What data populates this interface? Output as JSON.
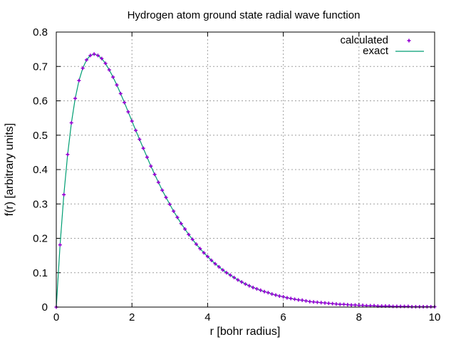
{
  "chart_data": {
    "type": "line",
    "title": "Hydrogen atom ground state radial wave function",
    "xlabel": "r [bohr radius]",
    "ylabel": "f(r) [arbitrary units]",
    "xlim": [
      0,
      10
    ],
    "ylim": [
      0,
      0.8
    ],
    "x_ticks": [
      "0",
      "2",
      "4",
      "6",
      "8",
      "10"
    ],
    "y_ticks": [
      "0",
      "0.1",
      "0.2",
      "0.3",
      "0.4",
      "0.5",
      "0.6",
      "0.7",
      "0.8"
    ],
    "grid": true,
    "legend_position": "top-right",
    "series": [
      {
        "name": "calculated",
        "style": "points",
        "color": "#9400d3",
        "x": [
          0,
          0.1,
          0.2,
          0.3,
          0.4,
          0.5,
          0.6,
          0.7,
          0.8,
          0.9,
          1.0,
          1.1,
          1.2,
          1.3,
          1.4,
          1.5,
          1.6,
          1.7,
          1.8,
          1.9,
          2.0,
          2.1,
          2.2,
          2.3,
          2.4,
          2.5,
          2.6,
          2.7,
          2.8,
          2.9,
          3.0,
          3.1,
          3.2,
          3.3,
          3.4,
          3.5,
          3.6,
          3.7,
          3.8,
          3.9,
          4.0,
          4.1,
          4.2,
          4.3,
          4.4,
          4.5,
          4.6,
          4.7,
          4.8,
          4.9,
          5.0,
          5.1,
          5.2,
          5.3,
          5.4,
          5.5,
          5.6,
          5.7,
          5.8,
          5.9,
          6.0,
          6.1,
          6.2,
          6.3,
          6.4,
          6.5,
          6.6,
          6.7,
          6.8,
          6.9,
          7.0,
          7.1,
          7.2,
          7.3,
          7.4,
          7.5,
          7.6,
          7.7,
          7.8,
          7.9,
          8.0,
          8.1,
          8.2,
          8.3,
          8.4,
          8.5,
          8.6,
          8.7,
          8.8,
          8.9,
          9.0,
          9.1,
          9.2,
          9.3,
          9.4,
          9.5,
          9.6,
          9.7,
          9.8,
          9.9,
          10.0
        ],
        "y": [
          0,
          0.181,
          0.327,
          0.444,
          0.536,
          0.607,
          0.659,
          0.695,
          0.719,
          0.732,
          0.736,
          0.732,
          0.723,
          0.709,
          0.69,
          0.669,
          0.646,
          0.621,
          0.595,
          0.568,
          0.541,
          0.514,
          0.488,
          0.462,
          0.436,
          0.41,
          0.386,
          0.363,
          0.34,
          0.319,
          0.299,
          0.279,
          0.261,
          0.243,
          0.227,
          0.211,
          0.197,
          0.183,
          0.17,
          0.158,
          0.147,
          0.136,
          0.126,
          0.117,
          0.108,
          0.1,
          0.093,
          0.086,
          0.079,
          0.073,
          0.067,
          0.062,
          0.057,
          0.053,
          0.049,
          0.045,
          0.042,
          0.038,
          0.035,
          0.032,
          0.03,
          0.027,
          0.025,
          0.023,
          0.021,
          0.02,
          0.018,
          0.016,
          0.015,
          0.014,
          0.013,
          0.012,
          0.011,
          0.01,
          0.009,
          0.008,
          0.008,
          0.007,
          0.006,
          0.006,
          0.005,
          0.005,
          0.004,
          0.004,
          0.004,
          0.003,
          0.003,
          0.003,
          0.003,
          0.002,
          0.002,
          0.002,
          0.002,
          0.002,
          0.001,
          0.001,
          0.001,
          0.001,
          0.001,
          0.001,
          0.001
        ]
      },
      {
        "name": "exact",
        "style": "line",
        "color": "#009e73",
        "x": [
          0,
          0.1,
          0.2,
          0.3,
          0.4,
          0.5,
          0.6,
          0.7,
          0.8,
          0.9,
          1.0,
          1.1,
          1.2,
          1.3,
          1.4,
          1.5,
          1.6,
          1.7,
          1.8,
          1.9,
          2.0,
          2.1,
          2.2,
          2.3,
          2.4,
          2.5,
          2.6,
          2.7,
          2.8,
          2.9,
          3.0,
          3.1,
          3.2,
          3.3,
          3.4,
          3.5,
          3.6,
          3.7,
          3.8,
          3.9,
          4.0,
          4.1,
          4.2,
          4.3,
          4.4,
          4.5,
          4.6,
          4.7,
          4.8,
          4.9,
          5.0,
          5.1,
          5.2,
          5.3,
          5.4,
          5.5,
          5.6,
          5.7,
          5.8,
          5.9,
          6.0,
          6.1,
          6.2,
          6.3,
          6.4,
          6.5,
          6.6,
          6.7,
          6.8,
          6.9,
          7.0,
          7.1,
          7.2,
          7.3,
          7.4,
          7.5,
          7.6,
          7.7,
          7.8,
          7.9,
          8.0,
          8.1,
          8.2,
          8.3,
          8.4,
          8.5,
          8.6,
          8.7,
          8.8,
          8.9,
          9.0,
          9.1,
          9.2,
          9.3,
          9.4,
          9.5,
          9.6,
          9.7,
          9.8,
          9.9,
          10.0
        ],
        "y": [
          0,
          0.181,
          0.327,
          0.444,
          0.536,
          0.607,
          0.659,
          0.695,
          0.719,
          0.732,
          0.736,
          0.732,
          0.723,
          0.709,
          0.69,
          0.669,
          0.646,
          0.621,
          0.595,
          0.568,
          0.541,
          0.514,
          0.488,
          0.462,
          0.436,
          0.41,
          0.386,
          0.363,
          0.34,
          0.319,
          0.299,
          0.279,
          0.261,
          0.243,
          0.227,
          0.211,
          0.197,
          0.183,
          0.17,
          0.158,
          0.147,
          0.136,
          0.126,
          0.117,
          0.108,
          0.1,
          0.093,
          0.086,
          0.079,
          0.073,
          0.067,
          0.062,
          0.057,
          0.053,
          0.049,
          0.045,
          0.042,
          0.038,
          0.035,
          0.032,
          0.03,
          0.027,
          0.025,
          0.023,
          0.021,
          0.02,
          0.018,
          0.016,
          0.015,
          0.014,
          0.013,
          0.012,
          0.011,
          0.01,
          0.009,
          0.008,
          0.008,
          0.007,
          0.006,
          0.006,
          0.005,
          0.005,
          0.004,
          0.004,
          0.004,
          0.003,
          0.003,
          0.003,
          0.003,
          0.002,
          0.002,
          0.002,
          0.002,
          0.002,
          0.001,
          0.001,
          0.001,
          0.001,
          0.001,
          0.001,
          0.001
        ]
      }
    ]
  }
}
